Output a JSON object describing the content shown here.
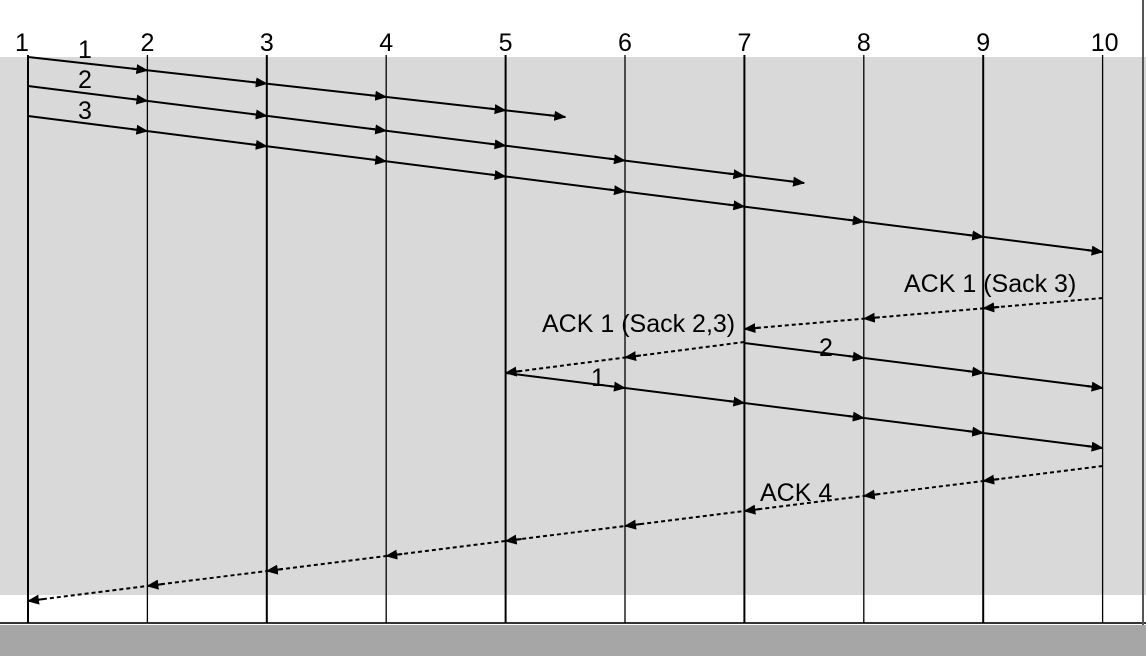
{
  "colors": {
    "band": "#d9d9d9",
    "bottom_bar": "#a6a6a6",
    "line": "#000000"
  },
  "nodes": [
    "1",
    "2",
    "3",
    "4",
    "5",
    "6",
    "7",
    "8",
    "9",
    "10"
  ],
  "packets": [
    {
      "label": "1",
      "from_node": "1",
      "to_node": "5.5",
      "drop": true
    },
    {
      "label": "2",
      "from_node": "1",
      "to_node": "7.5",
      "drop": true
    },
    {
      "label": "3",
      "from_node": "1",
      "to_node": "10",
      "drop": false
    },
    {
      "label": "2",
      "from_node": "7",
      "to_node": "10",
      "drop": false,
      "retransmission": true
    },
    {
      "label": "1",
      "from_node": "5",
      "to_node": "10",
      "drop": false,
      "retransmission": true
    }
  ],
  "acks": [
    {
      "label": "ACK 1 (Sack 3)",
      "from_node": "10",
      "to_node": "7"
    },
    {
      "label": "ACK 1 (Sack 2,3)",
      "from_node": "7",
      "to_node": "5"
    },
    {
      "label": "ACK 4",
      "from_node": "10",
      "to_node": "1"
    }
  ]
}
